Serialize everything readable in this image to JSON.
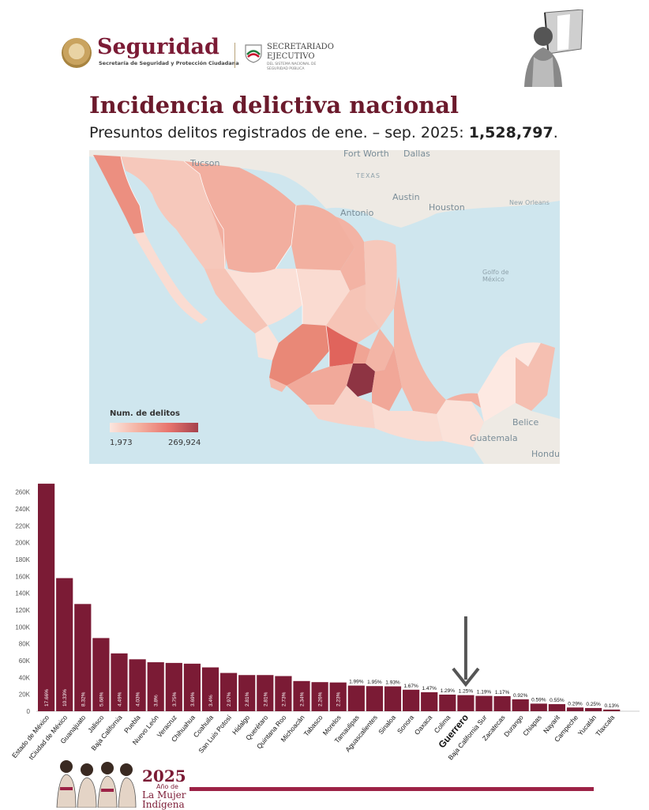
{
  "header": {
    "brand_name": "Seguridad",
    "brand_subtitle": "Secretaría de Seguridad y Protección Ciudadana",
    "secretariado_line1": "SECRETARIADO",
    "secretariado_line2": "EJECUTIVO",
    "secretariado_sub": "DEL SISTEMA NACIONAL DE SEGURIDAD PÚBLICA"
  },
  "title": "Incidencia delictiva nacional",
  "subtitle_prefix": "Presuntos delitos registrados de ene. – sep. 2025: ",
  "subtitle_total": "1,528,797",
  "subtitle_suffix": ".",
  "map": {
    "labels": {
      "tucson": "Tucson",
      "fort_worth": "Fort Worth",
      "dallas": "Dallas",
      "texas": "TEXAS",
      "austin": "Austin",
      "houston": "Houston",
      "san_antonio": "Antonio",
      "new_orleans": "New Orleans",
      "belice": "Belice",
      "guatemala": "Guatemala",
      "hondu": "Hondu",
      "golfo": "Golfo de México"
    },
    "legend_title": "Num. de delitos",
    "legend_min": "1,973",
    "legend_max": "269,924",
    "colors": {
      "low": "#fbe6df",
      "mid": "#f0a292",
      "high": "#a5414c",
      "water": "#cfe6ee",
      "land": "#eeeae4"
    }
  },
  "chart_data": {
    "type": "bar",
    "ylim": [
      0,
      270000
    ],
    "yticks": [
      "0",
      "20K",
      "40K",
      "60K",
      "80K",
      "100K",
      "120K",
      "140K",
      "160K",
      "180K",
      "200K",
      "220K",
      "240K",
      "260K"
    ],
    "bar_color": "#7b1b35",
    "highlight": "Guerrero",
    "categories": [
      "Estado de México",
      "tCiudad de México",
      "Guanajuato",
      "Jalisco",
      "Baja California",
      "Puebla",
      "Nuevo León",
      "Veracruz",
      "Chihuahua",
      "Coahuila",
      "San Luis Potosí",
      "Hidalgo",
      "Querétaro",
      "Quintana Roo",
      "Michoacán",
      "Tabasco",
      "Morelos",
      "Tamaulipas",
      "Aguascalientes",
      "Sinaloa",
      "Sonora",
      "Oaxaca",
      "Colima",
      "Guerrero",
      "Baja California Sur",
      "Zacatecas",
      "Durango",
      "Chiapas",
      "Nayarit",
      "Campeche",
      "Yucatán",
      "Tlaxcala"
    ],
    "values": [
      269924,
      157900,
      127200,
      86800,
      68600,
      61600,
      58100,
      57300,
      56400,
      52000,
      45400,
      42900,
      42900,
      41700,
      35800,
      34500,
      34100,
      30400,
      29800,
      29500,
      25500,
      22500,
      19700,
      19100,
      18200,
      17900,
      14100,
      9000,
      8400,
      4400,
      3800,
      1973
    ],
    "labels": [
      "17.66%",
      "10.33%",
      "8.32%",
      "5.68%",
      "4.49%",
      "4.03%",
      "3.8%",
      "3.75%",
      "3.69%",
      "3.4%",
      "2.97%",
      "2.81%",
      "2.81%",
      "2.73%",
      "2.34%",
      "2.26%",
      "2.23%",
      "1.99%",
      "1.95%",
      "1.93%",
      "1.67%",
      "1.47%",
      "1.29%",
      "1.25%",
      "1.19%",
      "1.17%",
      "0.92%",
      "0.59%",
      "0.55%",
      "0.29%",
      "0.25%",
      "0.13%"
    ]
  },
  "footer": {
    "year": "2025",
    "line1": "Año de",
    "line2": "La Mujer",
    "line3": "Indígena"
  }
}
